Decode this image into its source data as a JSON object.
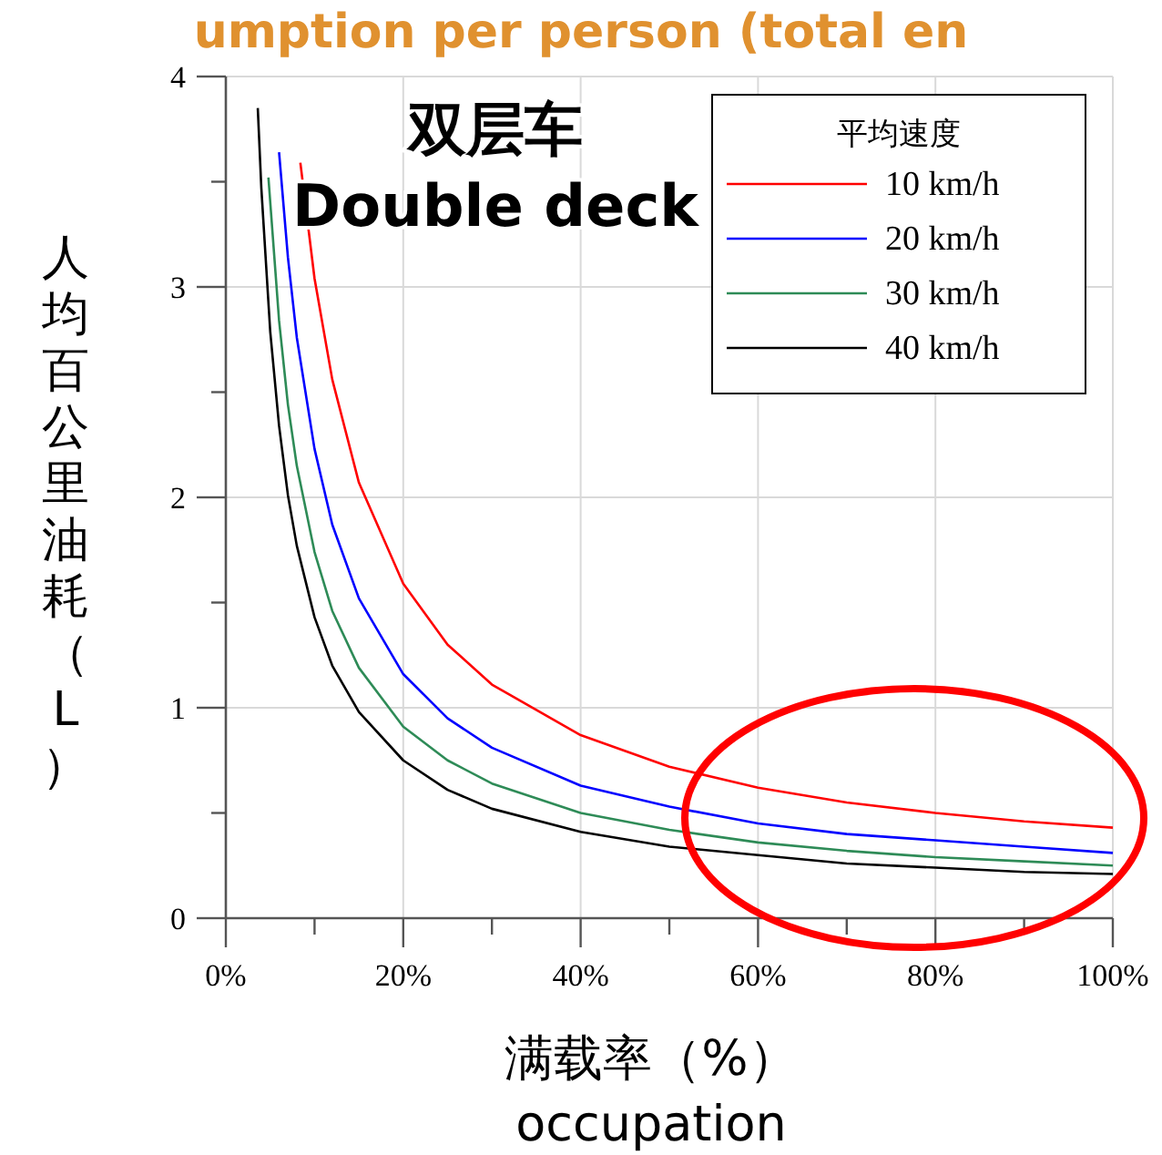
{
  "chart_data": {
    "type": "line",
    "title": "umption per person (total en",
    "xlabel": "满载率（%）\noccupation",
    "ylabel": "人均百公里油耗（L）",
    "legend_title": "平均速度",
    "legend": "top right",
    "grid": true,
    "line_style": "solid",
    "marker": "none",
    "annotations": [
      "双层车",
      "Double deck"
    ],
    "xlim": [
      0,
      100
    ],
    "ylim": [
      0,
      4
    ],
    "xticks": [
      {
        "value": 0,
        "label": "0%"
      },
      {
        "value": 10,
        "label": null
      },
      {
        "value": 20,
        "label": "20%"
      },
      {
        "value": 30,
        "label": null
      },
      {
        "value": 40,
        "label": "40%"
      },
      {
        "value": 50,
        "label": null
      },
      {
        "value": 60,
        "label": "60%"
      },
      {
        "value": 70,
        "label": null
      },
      {
        "value": 80,
        "label": "80%"
      },
      {
        "value": 90,
        "label": null
      },
      {
        "value": 100,
        "label": "100%"
      }
    ],
    "yticks": [
      0,
      {
        "value": 0.5,
        "label": null
      },
      1,
      {
        "value": 1.5,
        "label": null
      },
      2,
      {
        "value": 2.5,
        "label": null
      },
      3,
      {
        "value": 3.5,
        "label": null
      },
      4
    ],
    "series": [
      {
        "name": "10 km/h",
        "color": "#ff0000",
        "x": [
          8.4,
          10,
          12,
          15,
          20,
          25,
          30,
          40,
          50,
          60,
          70,
          80,
          90,
          100
        ],
        "values": [
          3.59,
          3.04,
          2.56,
          2.07,
          1.59,
          1.3,
          1.11,
          0.87,
          0.72,
          0.62,
          0.55,
          0.5,
          0.46,
          0.43
        ]
      },
      {
        "name": "20 km/h",
        "color": "#0000ff",
        "x": [
          6,
          7,
          8,
          10,
          12,
          15,
          20,
          25,
          30,
          40,
          50,
          60,
          70,
          80,
          90,
          100
        ],
        "values": [
          3.64,
          3.14,
          2.76,
          2.23,
          1.87,
          1.52,
          1.16,
          0.95,
          0.81,
          0.63,
          0.53,
          0.45,
          0.4,
          0.37,
          0.34,
          0.31
        ]
      },
      {
        "name": "30 km/h",
        "color": "#2e8b57",
        "x": [
          4.8,
          6,
          7,
          8,
          10,
          12,
          15,
          20,
          25,
          30,
          40,
          50,
          60,
          70,
          80,
          90,
          100
        ],
        "values": [
          3.52,
          2.84,
          2.44,
          2.15,
          1.74,
          1.46,
          1.19,
          0.91,
          0.75,
          0.64,
          0.5,
          0.42,
          0.36,
          0.32,
          0.29,
          0.27,
          0.25
        ]
      },
      {
        "name": "40 km/h",
        "color": "#000000",
        "x": [
          3.6,
          4,
          5,
          6,
          7,
          8,
          10,
          12,
          15,
          20,
          25,
          30,
          40,
          50,
          60,
          70,
          80,
          90,
          100
        ],
        "values": [
          3.85,
          3.47,
          2.79,
          2.34,
          2.01,
          1.77,
          1.43,
          1.2,
          0.98,
          0.75,
          0.61,
          0.52,
          0.41,
          0.34,
          0.3,
          0.26,
          0.24,
          0.22,
          0.21
        ]
      }
    ]
  }
}
